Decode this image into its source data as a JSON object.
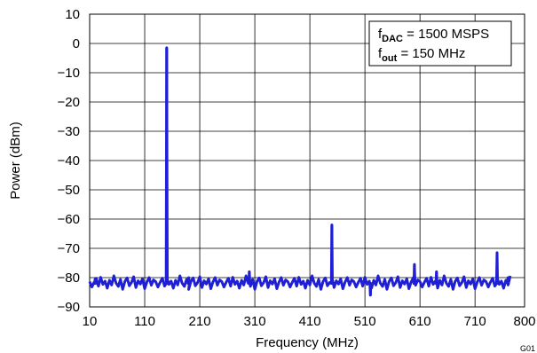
{
  "chart_data": {
    "type": "line",
    "xlabel": "Frequency (MHz)",
    "ylabel": "Power (dBm)",
    "xlim": [
      10,
      800
    ],
    "ylim": [
      -90,
      10
    ],
    "x_ticks": [
      "10",
      "110",
      "210",
      "310",
      "410",
      "510",
      "610",
      "710",
      "800"
    ],
    "y_ticks": [
      "10",
      "0",
      "−10",
      "−20",
      "−30",
      "−40",
      "−50",
      "−60",
      "−70",
      "−80",
      "−90"
    ],
    "grid": true,
    "series_color": "#1f1fd6",
    "noise_floor": -82,
    "noise_floor_jitter": [
      0.6,
      -1.2,
      0.4,
      1.8,
      -0.9,
      2.1,
      -0.3,
      0.8,
      -1.6,
      1.1,
      -0.5,
      2.6,
      0.1,
      -1.0,
      1.4,
      -2.0,
      0.7,
      1.9,
      -0.8,
      0.3,
      2.3,
      -1.4,
      0.9,
      -0.2,
      1.6,
      -1.8,
      0.5,
      2.0,
      -0.6,
      1.2
    ],
    "spurs": [
      {
        "x": 20,
        "y": -80.5
      },
      {
        "x": 150,
        "y": -1.5
      },
      {
        "x": 190,
        "y": -80
      },
      {
        "x": 300,
        "y": -78
      },
      {
        "x": 450,
        "y": -62
      },
      {
        "x": 520,
        "y": -86
      },
      {
        "x": 600,
        "y": -75.5
      },
      {
        "x": 640,
        "y": -78
      },
      {
        "x": 750,
        "y": -71.5
      },
      {
        "x": 770,
        "y": -80
      }
    ],
    "legend": {
      "line1_main": "f",
      "line1_sub": "DAC",
      "line1_rest": " = 1500 MSPS",
      "line2_main": "f",
      "line2_sub": "out",
      "line2_rest": " = 150 MHz"
    },
    "figure_id": "G01"
  }
}
